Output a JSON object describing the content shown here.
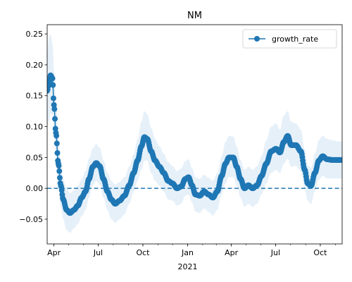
{
  "chart_data": {
    "type": "line",
    "title": "NM",
    "xlabel": "",
    "ylabel": "",
    "x_axis": {
      "type": "date",
      "range": [
        "2020-03-18",
        "2021-11-15"
      ],
      "ticks": [
        {
          "date": "2020-04-01",
          "label": "Apr"
        },
        {
          "date": "2020-07-01",
          "label": "Jul"
        },
        {
          "date": "2020-10-01",
          "label": "Oct"
        },
        {
          "date": "2021-01-01",
          "label": "Jan"
        },
        {
          "date": "2021-04-01",
          "label": "Apr"
        },
        {
          "date": "2021-07-01",
          "label": "Jul"
        },
        {
          "date": "2021-10-01",
          "label": "Oct"
        }
      ],
      "year_label": {
        "date": "2021-01-01",
        "label": "2021"
      }
    },
    "ylim": [
      -0.09,
      0.265
    ],
    "y_ticks": [
      -0.05,
      0.0,
      0.05,
      0.1,
      0.15,
      0.2,
      0.25
    ],
    "y_tick_labels": [
      "−0.05",
      "0.00",
      "0.05",
      "0.10",
      "0.15",
      "0.20",
      "0.25"
    ],
    "reference_line": {
      "y": 0.0,
      "style": "dashed",
      "color": "#1f77b4"
    },
    "legend": {
      "placement": "top-right",
      "entries": [
        "growth_rate"
      ]
    },
    "grid": false,
    "series": [
      {
        "name": "growth_rate",
        "color": "#1f77b4",
        "band_color": "#d6e6f5",
        "points": [
          {
            "date": "2020-03-18",
            "y": 0.158,
            "lo": 0.1,
            "hi": 0.22
          },
          {
            "date": "2020-03-22",
            "y": 0.172,
            "lo": 0.11,
            "hi": 0.245
          },
          {
            "date": "2020-03-25",
            "y": 0.183,
            "lo": 0.12,
            "hi": 0.25
          },
          {
            "date": "2020-03-29",
            "y": 0.178,
            "lo": 0.12,
            "hi": 0.235
          },
          {
            "date": "2020-04-01",
            "y": 0.135,
            "lo": 0.09,
            "hi": 0.19
          },
          {
            "date": "2020-04-05",
            "y": 0.09,
            "lo": 0.05,
            "hi": 0.14
          },
          {
            "date": "2020-04-10",
            "y": 0.04,
            "lo": 0.01,
            "hi": 0.08
          },
          {
            "date": "2020-04-15",
            "y": 0.005,
            "lo": -0.03,
            "hi": 0.045
          },
          {
            "date": "2020-04-20",
            "y": -0.018,
            "lo": -0.05,
            "hi": 0.015
          },
          {
            "date": "2020-04-27",
            "y": -0.035,
            "lo": -0.068,
            "hi": 0.0
          },
          {
            "date": "2020-05-04",
            "y": -0.04,
            "lo": -0.072,
            "hi": -0.008
          },
          {
            "date": "2020-05-12",
            "y": -0.035,
            "lo": -0.065,
            "hi": -0.003
          },
          {
            "date": "2020-05-20",
            "y": -0.028,
            "lo": -0.058,
            "hi": 0.004
          },
          {
            "date": "2020-05-28",
            "y": -0.015,
            "lo": -0.045,
            "hi": 0.015
          },
          {
            "date": "2020-06-05",
            "y": -0.005,
            "lo": -0.035,
            "hi": 0.028
          },
          {
            "date": "2020-06-12",
            "y": 0.015,
            "lo": -0.015,
            "hi": 0.048
          },
          {
            "date": "2020-06-20",
            "y": 0.035,
            "lo": 0.005,
            "hi": 0.065
          },
          {
            "date": "2020-06-27",
            "y": 0.041,
            "lo": 0.012,
            "hi": 0.072
          },
          {
            "date": "2020-07-04",
            "y": 0.036,
            "lo": 0.006,
            "hi": 0.066
          },
          {
            "date": "2020-07-12",
            "y": 0.015,
            "lo": -0.015,
            "hi": 0.045
          },
          {
            "date": "2020-07-20",
            "y": -0.005,
            "lo": -0.035,
            "hi": 0.025
          },
          {
            "date": "2020-07-28",
            "y": -0.018,
            "lo": -0.05,
            "hi": 0.012
          },
          {
            "date": "2020-08-05",
            "y": -0.025,
            "lo": -0.056,
            "hi": 0.006
          },
          {
            "date": "2020-08-14",
            "y": -0.02,
            "lo": -0.05,
            "hi": 0.01
          },
          {
            "date": "2020-08-24",
            "y": -0.012,
            "lo": -0.042,
            "hi": 0.018
          },
          {
            "date": "2020-09-03",
            "y": 0.005,
            "lo": -0.025,
            "hi": 0.035
          },
          {
            "date": "2020-09-12",
            "y": 0.025,
            "lo": -0.005,
            "hi": 0.055
          },
          {
            "date": "2020-09-20",
            "y": 0.045,
            "lo": 0.012,
            "hi": 0.08
          },
          {
            "date": "2020-09-28",
            "y": 0.068,
            "lo": 0.03,
            "hi": 0.108
          },
          {
            "date": "2020-10-04",
            "y": 0.083,
            "lo": 0.045,
            "hi": 0.125
          },
          {
            "date": "2020-10-10",
            "y": 0.08,
            "lo": 0.045,
            "hi": 0.12
          },
          {
            "date": "2020-10-18",
            "y": 0.06,
            "lo": 0.025,
            "hi": 0.098
          },
          {
            "date": "2020-10-26",
            "y": 0.045,
            "lo": 0.012,
            "hi": 0.08
          },
          {
            "date": "2020-11-04",
            "y": 0.035,
            "lo": 0.004,
            "hi": 0.068
          },
          {
            "date": "2020-11-13",
            "y": 0.025,
            "lo": -0.005,
            "hi": 0.056
          },
          {
            "date": "2020-11-22",
            "y": 0.012,
            "lo": -0.018,
            "hi": 0.042
          },
          {
            "date": "2020-12-01",
            "y": 0.008,
            "lo": -0.02,
            "hi": 0.036
          },
          {
            "date": "2020-12-10",
            "y": 0.0,
            "lo": -0.028,
            "hi": 0.028
          },
          {
            "date": "2020-12-19",
            "y": 0.003,
            "lo": -0.025,
            "hi": 0.032
          },
          {
            "date": "2020-12-27",
            "y": 0.015,
            "lo": -0.012,
            "hi": 0.044
          },
          {
            "date": "2021-01-03",
            "y": 0.018,
            "lo": -0.01,
            "hi": 0.047
          },
          {
            "date": "2021-01-10",
            "y": 0.005,
            "lo": -0.023,
            "hi": 0.033
          },
          {
            "date": "2021-01-17",
            "y": -0.01,
            "lo": -0.038,
            "hi": 0.018
          },
          {
            "date": "2021-01-26",
            "y": -0.012,
            "lo": -0.04,
            "hi": 0.015
          },
          {
            "date": "2021-02-04",
            "y": -0.005,
            "lo": -0.033,
            "hi": 0.022
          },
          {
            "date": "2021-02-13",
            "y": -0.01,
            "lo": -0.038,
            "hi": 0.017
          },
          {
            "date": "2021-02-22",
            "y": -0.015,
            "lo": -0.044,
            "hi": 0.012
          },
          {
            "date": "2021-03-03",
            "y": -0.005,
            "lo": -0.035,
            "hi": 0.025
          },
          {
            "date": "2021-03-12",
            "y": 0.02,
            "lo": -0.01,
            "hi": 0.052
          },
          {
            "date": "2021-03-20",
            "y": 0.04,
            "lo": 0.008,
            "hi": 0.075
          },
          {
            "date": "2021-03-27",
            "y": 0.05,
            "lo": 0.018,
            "hi": 0.085
          },
          {
            "date": "2021-04-05",
            "y": 0.05,
            "lo": 0.018,
            "hi": 0.084
          },
          {
            "date": "2021-04-12",
            "y": 0.035,
            "lo": 0.004,
            "hi": 0.068
          },
          {
            "date": "2021-04-20",
            "y": 0.015,
            "lo": -0.015,
            "hi": 0.046
          },
          {
            "date": "2021-04-28",
            "y": 0.0,
            "lo": -0.03,
            "hi": 0.03
          },
          {
            "date": "2021-05-06",
            "y": 0.005,
            "lo": -0.025,
            "hi": 0.035
          },
          {
            "date": "2021-05-15",
            "y": 0.0,
            "lo": -0.03,
            "hi": 0.03
          },
          {
            "date": "2021-05-24",
            "y": 0.005,
            "lo": -0.025,
            "hi": 0.036
          },
          {
            "date": "2021-06-02",
            "y": 0.02,
            "lo": -0.01,
            "hi": 0.052
          },
          {
            "date": "2021-06-12",
            "y": 0.04,
            "lo": 0.008,
            "hi": 0.078
          },
          {
            "date": "2021-06-22",
            "y": 0.06,
            "lo": 0.025,
            "hi": 0.1
          },
          {
            "date": "2021-07-02",
            "y": 0.064,
            "lo": 0.03,
            "hi": 0.105
          },
          {
            "date": "2021-07-10",
            "y": 0.058,
            "lo": 0.025,
            "hi": 0.095
          },
          {
            "date": "2021-07-18",
            "y": 0.075,
            "lo": 0.04,
            "hi": 0.118
          },
          {
            "date": "2021-07-26",
            "y": 0.085,
            "lo": 0.048,
            "hi": 0.125
          },
          {
            "date": "2021-08-02",
            "y": 0.07,
            "lo": 0.035,
            "hi": 0.108
          },
          {
            "date": "2021-08-12",
            "y": 0.07,
            "lo": 0.036,
            "hi": 0.105
          },
          {
            "date": "2021-08-22",
            "y": 0.06,
            "lo": 0.028,
            "hi": 0.095
          },
          {
            "date": "2021-08-30",
            "y": 0.03,
            "lo": 0.0,
            "hi": 0.063
          },
          {
            "date": "2021-09-05",
            "y": 0.008,
            "lo": -0.02,
            "hi": 0.038
          },
          {
            "date": "2021-09-12",
            "y": 0.004,
            "lo": -0.025,
            "hi": 0.033
          },
          {
            "date": "2021-09-20",
            "y": 0.025,
            "lo": -0.005,
            "hi": 0.056
          },
          {
            "date": "2021-09-28",
            "y": 0.045,
            "lo": 0.014,
            "hi": 0.078
          },
          {
            "date": "2021-10-06",
            "y": 0.052,
            "lo": 0.02,
            "hi": 0.085
          },
          {
            "date": "2021-10-15",
            "y": 0.047,
            "lo": 0.016,
            "hi": 0.08
          },
          {
            "date": "2021-10-25",
            "y": 0.046,
            "lo": 0.016,
            "hi": 0.078
          },
          {
            "date": "2021-11-05",
            "y": 0.046,
            "lo": 0.016,
            "hi": 0.076
          },
          {
            "date": "2021-11-15",
            "y": 0.046,
            "lo": 0.016,
            "hi": 0.076
          }
        ]
      }
    ]
  }
}
